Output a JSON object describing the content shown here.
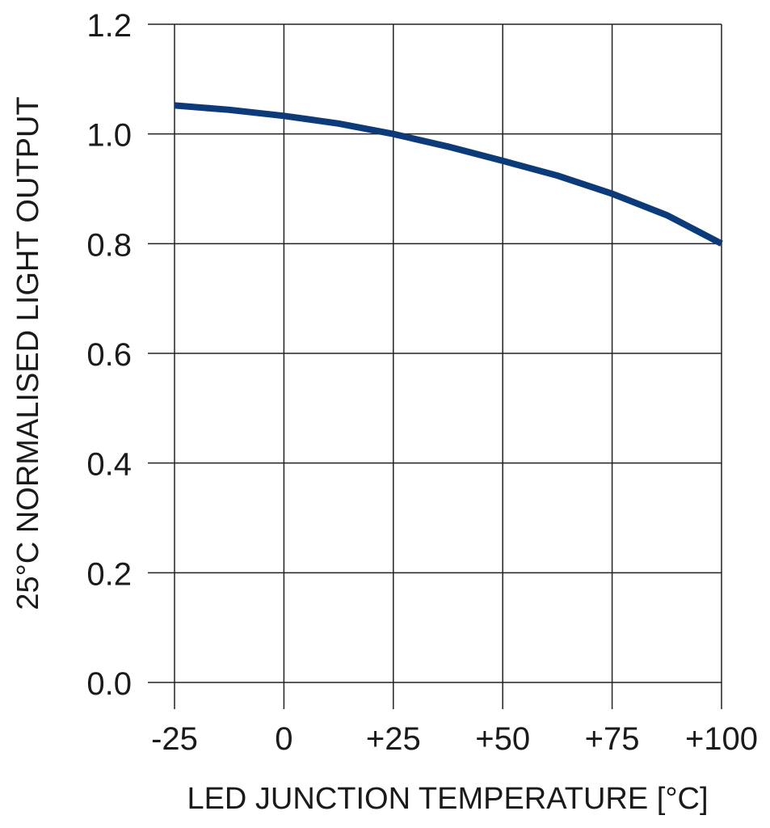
{
  "chart_data": {
    "type": "line",
    "title": "",
    "xlabel": "LED JUNCTION TEMPERATURE [°C]",
    "ylabel": "25°C NORMALISED LIGHT OUTPUT",
    "x_ticks": [
      "-25",
      "0",
      "+25",
      "+50",
      "+75",
      "+100"
    ],
    "x_tick_values": [
      -25,
      0,
      25,
      50,
      75,
      100
    ],
    "y_ticks": [
      "0.0",
      "0.2",
      "0.4",
      "0.6",
      "0.8",
      "1.0",
      "1.2"
    ],
    "y_tick_values": [
      0.0,
      0.2,
      0.4,
      0.6,
      0.8,
      1.0,
      1.2
    ],
    "xlim": [
      -25,
      100
    ],
    "ylim": [
      0.0,
      1.2
    ],
    "grid": true,
    "legend": "none",
    "series": [
      {
        "color": "#0d3b7a",
        "x": [
          -25,
          -12.5,
          0,
          12.5,
          25,
          37.5,
          50,
          62.5,
          75,
          87.5,
          100
        ],
        "y": [
          1.052,
          1.044,
          1.033,
          1.019,
          1.0,
          0.977,
          0.951,
          0.924,
          0.891,
          0.852,
          0.8
        ]
      }
    ]
  }
}
